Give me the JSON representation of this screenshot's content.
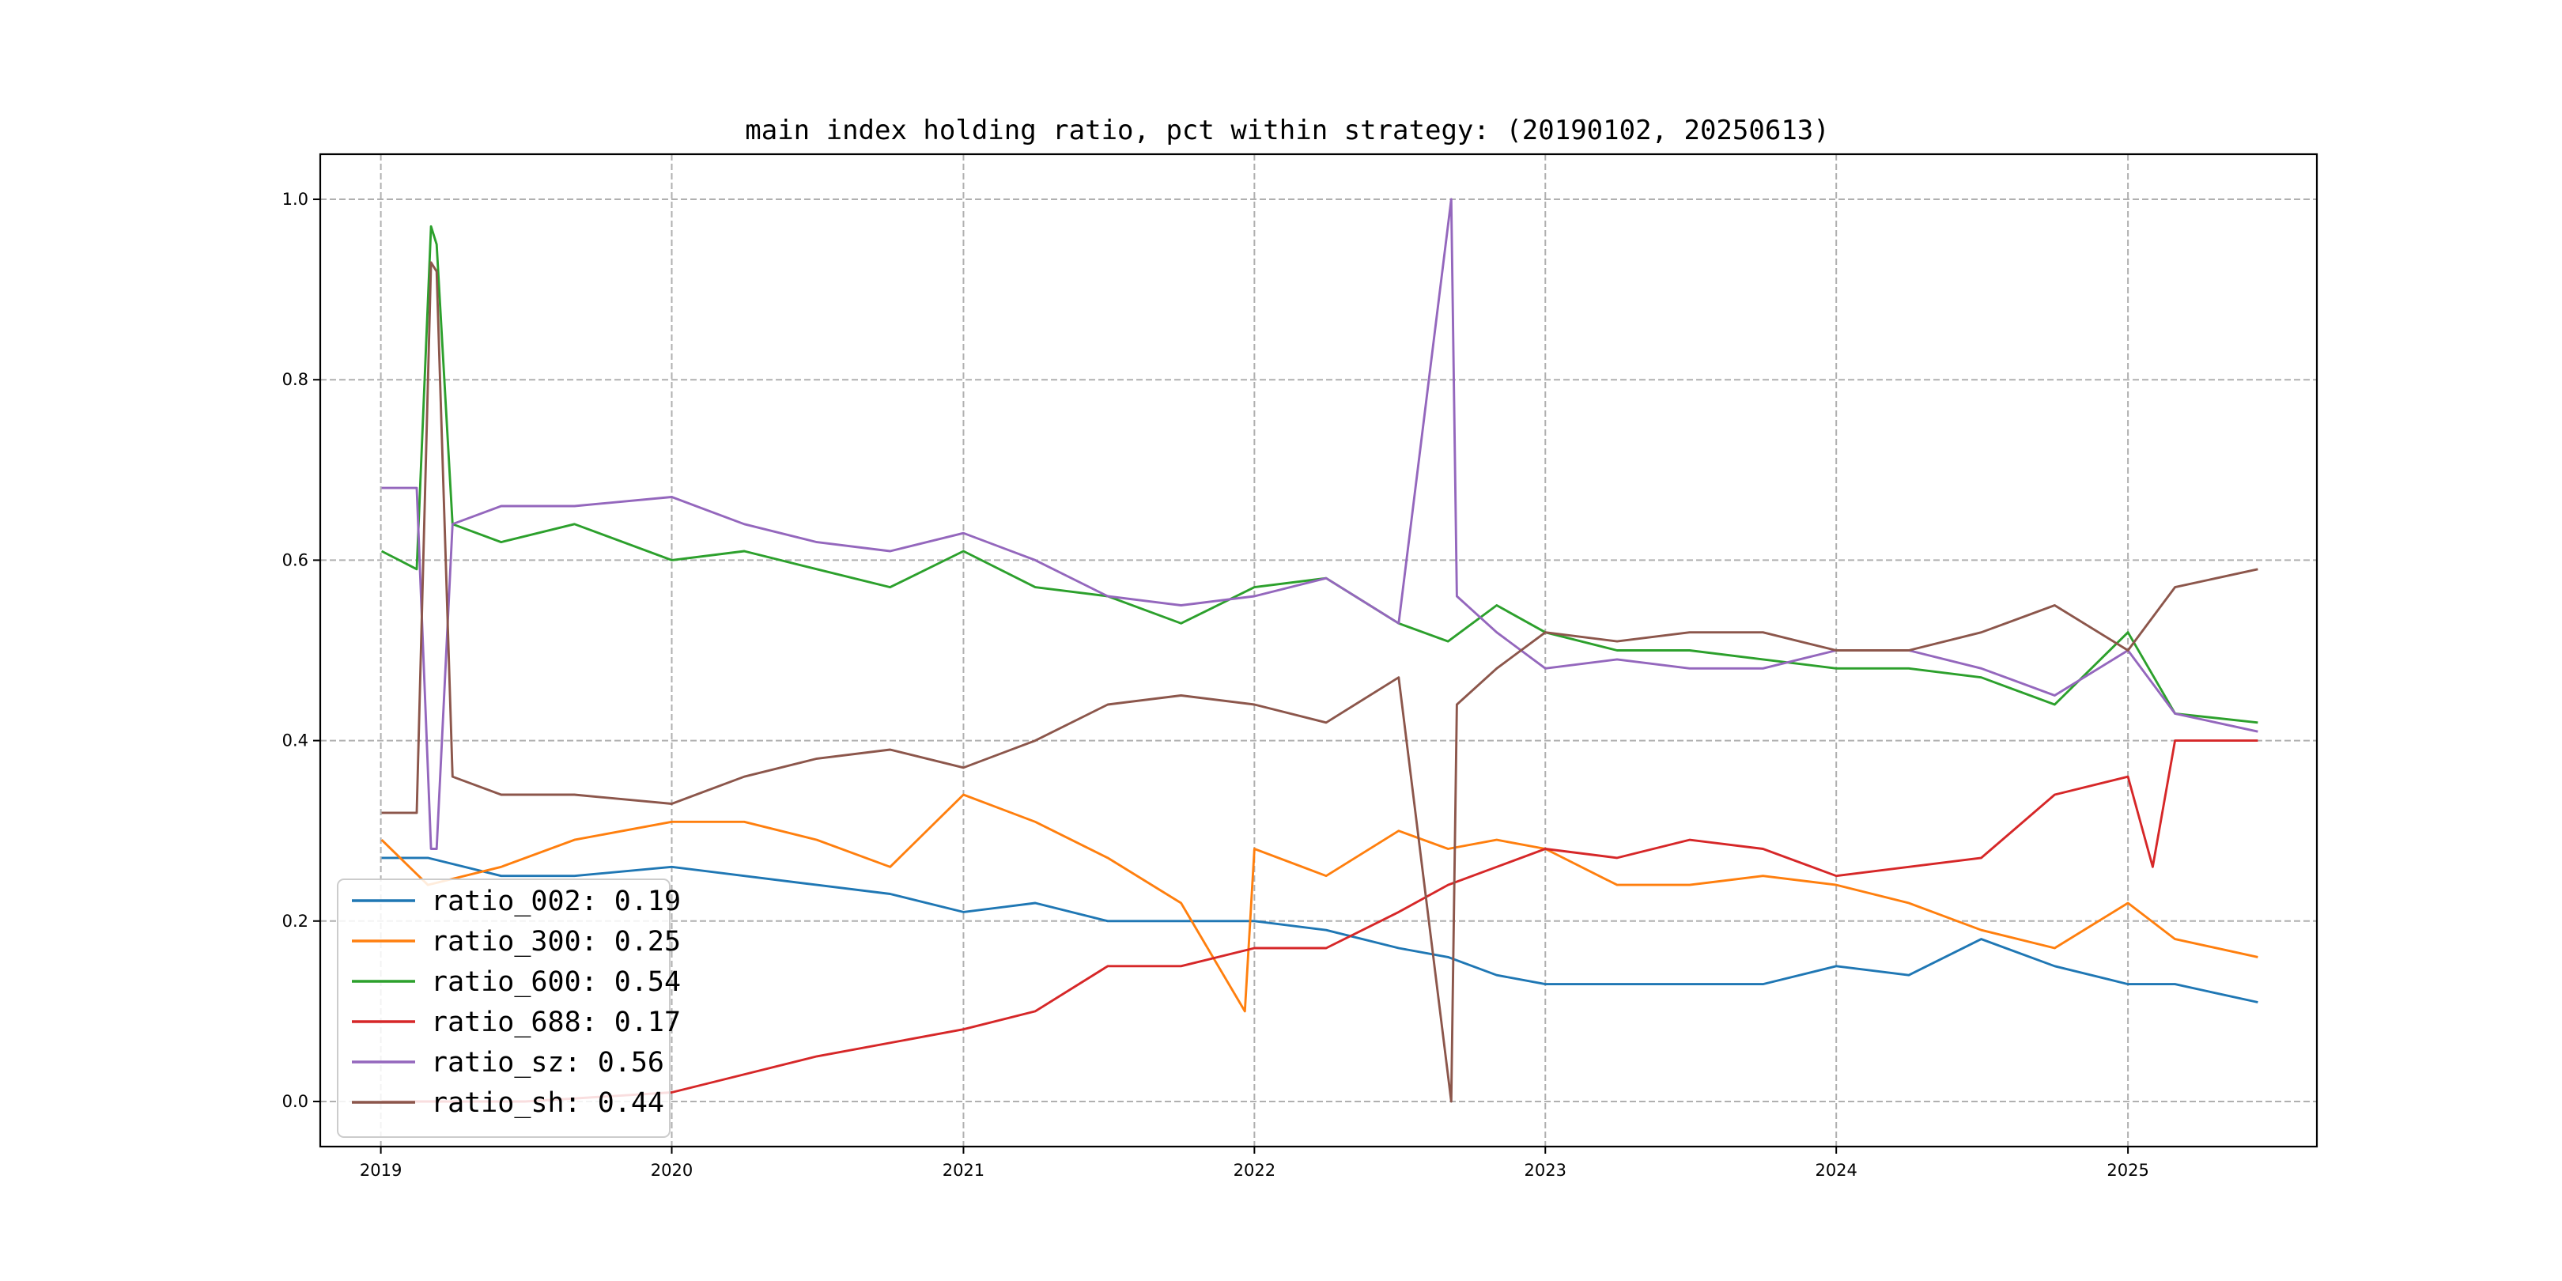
{
  "chart_data": {
    "type": "line",
    "title": "main index holding ratio, pct within strategy: (20190102, 20250613)",
    "xlabel": "",
    "ylabel": "",
    "xlim": [
      "2018-10-17",
      "2025-08-26"
    ],
    "ylim": [
      -0.05,
      1.05
    ],
    "x_ticks": [
      "2019",
      "2020",
      "2021",
      "2022",
      "2023",
      "2024",
      "2025"
    ],
    "y_ticks": [
      "0.0",
      "0.2",
      "0.4",
      "0.6",
      "0.8",
      "1.0"
    ],
    "grid": true,
    "legend_position": "lower-left",
    "series": [
      {
        "name": "ratio_002: 0.19",
        "color": "#1f77b4",
        "x": [
          "2019-01-02",
          "2019-03-01",
          "2019-06-01",
          "2019-09-01",
          "2020-01-01",
          "2020-04-01",
          "2020-07-01",
          "2020-10-01",
          "2021-01-01",
          "2021-04-01",
          "2021-07-01",
          "2021-10-01",
          "2022-01-01",
          "2022-04-01",
          "2022-07-01",
          "2022-09-01",
          "2022-11-01",
          "2023-01-01",
          "2023-04-01",
          "2023-07-01",
          "2023-10-01",
          "2024-01-01",
          "2024-04-01",
          "2024-07-01",
          "2024-10-01",
          "2025-01-01",
          "2025-03-01",
          "2025-06-13"
        ],
        "y": [
          0.27,
          0.27,
          0.25,
          0.25,
          0.26,
          0.25,
          0.24,
          0.23,
          0.21,
          0.22,
          0.2,
          0.2,
          0.2,
          0.19,
          0.17,
          0.16,
          0.14,
          0.13,
          0.13,
          0.13,
          0.13,
          0.15,
          0.14,
          0.18,
          0.15,
          0.13,
          0.13,
          0.11
        ]
      },
      {
        "name": "ratio_300: 0.25",
        "color": "#ff7f0e",
        "x": [
          "2019-01-02",
          "2019-03-01",
          "2019-06-01",
          "2019-09-01",
          "2020-01-01",
          "2020-04-01",
          "2020-07-01",
          "2020-10-01",
          "2021-01-01",
          "2021-04-01",
          "2021-07-01",
          "2021-10-01",
          "2021-12-20",
          "2022-01-01",
          "2022-04-01",
          "2022-07-01",
          "2022-09-01",
          "2022-11-01",
          "2023-01-01",
          "2023-04-01",
          "2023-07-01",
          "2023-10-01",
          "2024-01-01",
          "2024-04-01",
          "2024-07-01",
          "2024-10-01",
          "2025-01-01",
          "2025-03-01",
          "2025-06-13"
        ],
        "y": [
          0.29,
          0.24,
          0.26,
          0.29,
          0.31,
          0.31,
          0.29,
          0.26,
          0.34,
          0.31,
          0.27,
          0.22,
          0.1,
          0.28,
          0.25,
          0.3,
          0.28,
          0.29,
          0.28,
          0.24,
          0.24,
          0.25,
          0.24,
          0.22,
          0.19,
          0.17,
          0.22,
          0.18,
          0.16
        ]
      },
      {
        "name": "ratio_600: 0.54",
        "color": "#2ca02c",
        "x": [
          "2019-01-02",
          "2019-02-15",
          "2019-03-05",
          "2019-03-12",
          "2019-04-01",
          "2019-06-01",
          "2019-09-01",
          "2020-01-01",
          "2020-04-01",
          "2020-07-01",
          "2020-10-01",
          "2021-01-01",
          "2021-04-01",
          "2021-07-01",
          "2021-10-01",
          "2022-01-01",
          "2022-04-01",
          "2022-07-01",
          "2022-09-01",
          "2022-11-01",
          "2023-01-01",
          "2023-04-01",
          "2023-07-01",
          "2023-10-01",
          "2024-01-01",
          "2024-04-01",
          "2024-07-01",
          "2024-10-01",
          "2025-01-01",
          "2025-03-01",
          "2025-06-13"
        ],
        "y": [
          0.61,
          0.59,
          0.97,
          0.95,
          0.64,
          0.62,
          0.64,
          0.6,
          0.61,
          0.59,
          0.57,
          0.61,
          0.57,
          0.56,
          0.53,
          0.57,
          0.58,
          0.53,
          0.51,
          0.55,
          0.52,
          0.5,
          0.5,
          0.49,
          0.48,
          0.48,
          0.47,
          0.44,
          0.52,
          0.43,
          0.42
        ]
      },
      {
        "name": "ratio_688: 0.17",
        "color": "#d62728",
        "x": [
          "2019-01-02",
          "2019-07-01",
          "2020-01-01",
          "2020-07-01",
          "2021-01-01",
          "2021-04-01",
          "2021-07-01",
          "2021-10-01",
          "2022-01-01",
          "2022-04-01",
          "2022-07-01",
          "2022-09-01",
          "2022-11-01",
          "2023-01-01",
          "2023-04-01",
          "2023-07-01",
          "2023-10-01",
          "2024-01-01",
          "2024-04-01",
          "2024-07-01",
          "2024-10-01",
          "2025-01-01",
          "2025-02-01",
          "2025-03-01",
          "2025-06-13"
        ],
        "y": [
          0.0,
          0.0,
          0.01,
          0.05,
          0.08,
          0.1,
          0.15,
          0.15,
          0.17,
          0.17,
          0.21,
          0.24,
          0.26,
          0.28,
          0.27,
          0.29,
          0.28,
          0.25,
          0.26,
          0.27,
          0.34,
          0.36,
          0.26,
          0.4,
          0.4
        ]
      },
      {
        "name": "ratio_sz: 0.56",
        "color": "#9467bd",
        "x": [
          "2019-01-02",
          "2019-02-15",
          "2019-03-05",
          "2019-03-12",
          "2019-04-01",
          "2019-06-01",
          "2019-09-01",
          "2020-01-01",
          "2020-04-01",
          "2020-07-01",
          "2020-10-01",
          "2021-01-01",
          "2021-04-01",
          "2021-07-01",
          "2021-10-01",
          "2022-01-01",
          "2022-04-01",
          "2022-07-01",
          "2022-09-05",
          "2022-09-12",
          "2022-11-01",
          "2023-01-01",
          "2023-04-01",
          "2023-07-01",
          "2023-10-01",
          "2024-01-01",
          "2024-04-01",
          "2024-07-01",
          "2024-10-01",
          "2025-01-01",
          "2025-03-01",
          "2025-06-13"
        ],
        "y": [
          0.68,
          0.68,
          0.28,
          0.28,
          0.64,
          0.66,
          0.66,
          0.67,
          0.64,
          0.62,
          0.61,
          0.63,
          0.6,
          0.56,
          0.55,
          0.56,
          0.58,
          0.53,
          1.0,
          0.56,
          0.52,
          0.48,
          0.49,
          0.48,
          0.48,
          0.5,
          0.5,
          0.48,
          0.45,
          0.5,
          0.43,
          0.41
        ]
      },
      {
        "name": "ratio_sh: 0.44",
        "color": "#8c564b",
        "x": [
          "2019-01-02",
          "2019-02-15",
          "2019-03-05",
          "2019-03-12",
          "2019-04-01",
          "2019-06-01",
          "2019-09-01",
          "2020-01-01",
          "2020-04-01",
          "2020-07-01",
          "2020-10-01",
          "2021-01-01",
          "2021-04-01",
          "2021-07-01",
          "2021-10-01",
          "2022-01-01",
          "2022-04-01",
          "2022-07-01",
          "2022-09-05",
          "2022-09-12",
          "2022-11-01",
          "2023-01-01",
          "2023-04-01",
          "2023-07-01",
          "2023-10-01",
          "2024-01-01",
          "2024-04-01",
          "2024-07-01",
          "2024-10-01",
          "2025-01-01",
          "2025-03-01",
          "2025-06-13"
        ],
        "y": [
          0.32,
          0.32,
          0.93,
          0.92,
          0.36,
          0.34,
          0.34,
          0.33,
          0.36,
          0.38,
          0.39,
          0.37,
          0.4,
          0.44,
          0.45,
          0.44,
          0.42,
          0.47,
          0.0,
          0.44,
          0.48,
          0.52,
          0.51,
          0.52,
          0.52,
          0.5,
          0.5,
          0.52,
          0.55,
          0.5,
          0.57,
          0.59
        ]
      }
    ]
  }
}
